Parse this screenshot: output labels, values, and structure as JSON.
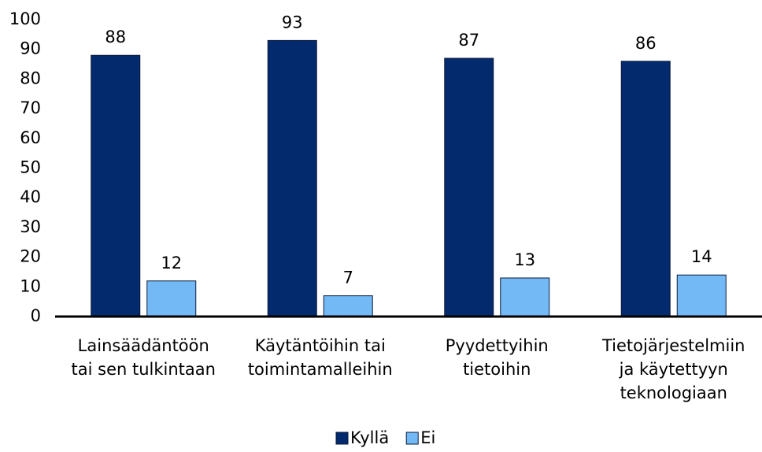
{
  "chart_data": {
    "type": "bar",
    "categories": [
      "Lainsäädäntöön\ntai sen tulkintaan",
      "Käytäntöihin tai\ntoimintamalleihin",
      "Pyydettyihin\ntietoihin",
      "Tietojärjestelmiin\nja käytettyyn\nteknologiaan"
    ],
    "series": [
      {
        "name": "Kyllä",
        "color": "#022a6c",
        "values": [
          88,
          93,
          87,
          86
        ]
      },
      {
        "name": "Ei",
        "color": "#72b9f6",
        "values": [
          12,
          7,
          13,
          14
        ]
      }
    ],
    "ylim": [
      0,
      100
    ],
    "yticks": [
      0,
      10,
      20,
      30,
      40,
      50,
      60,
      70,
      80,
      90,
      100
    ],
    "legend": "bottom"
  }
}
